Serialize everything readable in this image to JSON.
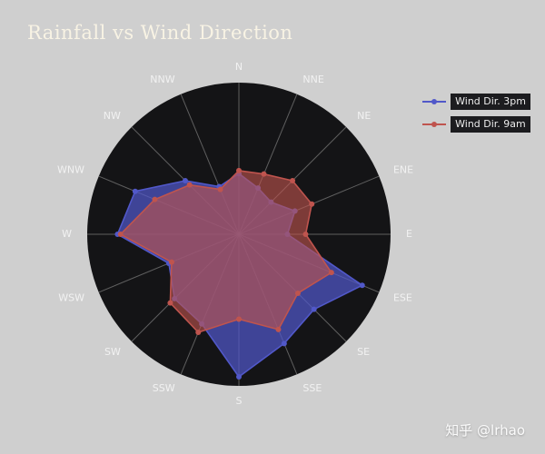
{
  "page": {
    "title": "Rainfall vs Wind Direction",
    "watermark": "知乎 @lrhao"
  },
  "colors": {
    "page_bg": "#cfcfcf",
    "chart_bg": "#141416",
    "spoke": "#787878",
    "label": "#f2f2f2",
    "title": "#f8f3e4",
    "series_3pm": "#5158c9",
    "series_9am": "#bf544e"
  },
  "chart_data": {
    "type": "radar",
    "title": "Rainfall vs Wind Direction",
    "categories": [
      "N",
      "NNE",
      "NE",
      "ENE",
      "E",
      "ESE",
      "SE",
      "SSE",
      "S",
      "SSW",
      "SW",
      "WSW",
      "W",
      "WNW",
      "NW",
      "NNW"
    ],
    "series": [
      {
        "name": "Wind Dir. 3pm",
        "color": "#5158c9",
        "fill": "rgba(81,88,201,0.72)",
        "values": [
          0.4,
          0.33,
          0.3,
          0.4,
          0.32,
          0.88,
          0.7,
          0.78,
          0.94,
          0.64,
          0.6,
          0.5,
          0.8,
          0.74,
          0.5,
          0.34
        ]
      },
      {
        "name": "Wind Dir. 9am",
        "color": "#bf544e",
        "fill": "rgba(191,84,78,0.62)",
        "values": [
          0.42,
          0.43,
          0.5,
          0.52,
          0.44,
          0.66,
          0.55,
          0.68,
          0.56,
          0.7,
          0.64,
          0.48,
          0.78,
          0.6,
          0.46,
          0.32
        ]
      }
    ],
    "rmax": 1,
    "grid": "spokes-only",
    "radial_ticks_visible": false,
    "legend_position": "top-right"
  }
}
